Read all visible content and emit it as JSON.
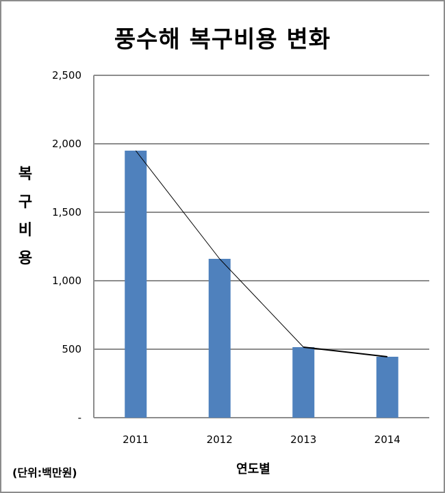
{
  "chart_data": {
    "type": "bar",
    "title": "풍수해 복구비용 변화",
    "xlabel": "연도별",
    "ylabel": "복구비용",
    "unit_note": "(단위:백만원)",
    "categories": [
      "2011",
      "2012",
      "2013",
      "2014"
    ],
    "values": [
      1950,
      1160,
      515,
      445
    ],
    "ylim": [
      0,
      2500
    ],
    "yticks": [
      0,
      500,
      1000,
      1500,
      2000,
      2500
    ],
    "ytick_labels": [
      "-",
      "500",
      "1,000",
      "1,500",
      "2,000",
      "2,500"
    ],
    "grid": true,
    "trend_line": true,
    "bar_color": "#4f81bd",
    "grid_color": "#8c8c8c",
    "line_color": "#000000"
  }
}
